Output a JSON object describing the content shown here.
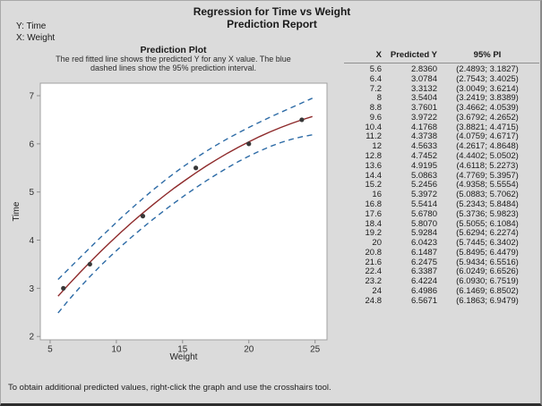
{
  "header": {
    "title": "Regression for Time vs Weight",
    "subtitle": "Prediction Report"
  },
  "variables": {
    "y_line": "Y: Time",
    "x_line": "X: Weight"
  },
  "plot_panel": {
    "heading": "Prediction Plot",
    "description_line1": "The red fitted line shows the predicted Y for any X value. The blue",
    "description_line2": "dashed lines show the 95% prediction interval."
  },
  "chart_data": {
    "type": "line",
    "title": "Prediction Plot",
    "xlabel": "Weight",
    "ylabel": "Time",
    "x_ticks": [
      5,
      10,
      15,
      20,
      25
    ],
    "y_ticks": [
      2,
      3,
      4,
      5,
      6,
      7
    ],
    "x_range": [
      4.26,
      25.9
    ],
    "y_range": [
      1.93,
      7.26
    ],
    "grid": false,
    "legend": false,
    "colors": {
      "fitted": "#8e2a2b",
      "interval": "#2d6ba6",
      "points": "#383838",
      "axis": "#8f8f8f",
      "plot_bg": "#ffffff",
      "window_bg": "#dbdbdb"
    },
    "series": [
      {
        "name": "fitted-line",
        "kind": "line",
        "color": "#8e2a2b",
        "x": [
          5.6,
          6.4,
          7.2,
          8,
          8.8,
          9.6,
          10.4,
          11.2,
          12,
          12.8,
          13.6,
          14.4,
          15.2,
          16,
          16.8,
          17.6,
          18.4,
          19.2,
          20,
          20.8,
          21.6,
          22.4,
          23.2,
          24,
          24.8
        ],
        "y": [
          2.836,
          3.0784,
          3.3132,
          3.5404,
          3.7601,
          3.9722,
          4.1768,
          4.3738,
          4.5633,
          4.7452,
          4.9195,
          5.0863,
          5.2456,
          5.3972,
          5.5414,
          5.678,
          5.807,
          5.9284,
          6.0423,
          6.1487,
          6.2475,
          6.3387,
          6.4224,
          6.4986,
          6.5671
        ]
      },
      {
        "name": "pi-lower",
        "kind": "dashed",
        "color": "#2d6ba6",
        "x": [
          5.6,
          6.4,
          7.2,
          8,
          8.8,
          9.6,
          10.4,
          11.2,
          12,
          12.8,
          13.6,
          14.4,
          15.2,
          16,
          16.8,
          17.6,
          18.4,
          19.2,
          20,
          20.8,
          21.6,
          22.4,
          23.2,
          24,
          24.8
        ],
        "y": [
          2.4893,
          2.7543,
          3.0049,
          3.2419,
          3.4662,
          3.6792,
          3.8821,
          4.0759,
          4.2617,
          4.4402,
          4.6118,
          4.7769,
          4.9358,
          5.0883,
          5.2343,
          5.3736,
          5.5055,
          5.6294,
          5.7445,
          5.8495,
          5.9434,
          6.0249,
          6.093,
          6.1469,
          6.1863
        ]
      },
      {
        "name": "pi-upper",
        "kind": "dashed",
        "color": "#2d6ba6",
        "x": [
          5.6,
          6.4,
          7.2,
          8,
          8.8,
          9.6,
          10.4,
          11.2,
          12,
          12.8,
          13.6,
          14.4,
          15.2,
          16,
          16.8,
          17.6,
          18.4,
          19.2,
          20,
          20.8,
          21.6,
          22.4,
          23.2,
          24,
          24.8
        ],
        "y": [
          3.1827,
          3.4025,
          3.6214,
          3.8389,
          4.0539,
          4.2652,
          4.4715,
          4.6717,
          4.8648,
          5.0502,
          5.2273,
          5.3957,
          5.5554,
          5.7062,
          5.8484,
          5.9823,
          6.1084,
          6.2274,
          6.3402,
          6.4479,
          6.5516,
          6.6526,
          6.7519,
          6.8502,
          6.9479
        ]
      },
      {
        "name": "observations",
        "kind": "scatter",
        "color": "#383838",
        "x": [
          6,
          8,
          12,
          16,
          20,
          24
        ],
        "y": [
          3,
          3.5,
          4.5,
          5.5,
          6,
          6.5
        ]
      }
    ]
  },
  "table": {
    "headers": [
      "X",
      "Predicted Y",
      "95% PI"
    ],
    "rows": [
      [
        "5.6",
        "2.8360",
        "(2.4893; 3.1827)"
      ],
      [
        "6.4",
        "3.0784",
        "(2.7543; 3.4025)"
      ],
      [
        "7.2",
        "3.3132",
        "(3.0049; 3.6214)"
      ],
      [
        "8",
        "3.5404",
        "(3.2419; 3.8389)"
      ],
      [
        "8.8",
        "3.7601",
        "(3.4662; 4.0539)"
      ],
      [
        "9.6",
        "3.9722",
        "(3.6792; 4.2652)"
      ],
      [
        "10.4",
        "4.1768",
        "(3.8821; 4.4715)"
      ],
      [
        "11.2",
        "4.3738",
        "(4.0759; 4.6717)"
      ],
      [
        "12",
        "4.5633",
        "(4.2617; 4.8648)"
      ],
      [
        "12.8",
        "4.7452",
        "(4.4402; 5.0502)"
      ],
      [
        "13.6",
        "4.9195",
        "(4.6118; 5.2273)"
      ],
      [
        "14.4",
        "5.0863",
        "(4.7769; 5.3957)"
      ],
      [
        "15.2",
        "5.2456",
        "(4.9358; 5.5554)"
      ],
      [
        "16",
        "5.3972",
        "(5.0883; 5.7062)"
      ],
      [
        "16.8",
        "5.5414",
        "(5.2343; 5.8484)"
      ],
      [
        "17.6",
        "5.6780",
        "(5.3736; 5.9823)"
      ],
      [
        "18.4",
        "5.8070",
        "(5.5055; 6.1084)"
      ],
      [
        "19.2",
        "5.9284",
        "(5.6294; 6.2274)"
      ],
      [
        "20",
        "6.0423",
        "(5.7445; 6.3402)"
      ],
      [
        "20.8",
        "6.1487",
        "(5.8495; 6.4479)"
      ],
      [
        "21.6",
        "6.2475",
        "(5.9434; 6.5516)"
      ],
      [
        "22.4",
        "6.3387",
        "(6.0249; 6.6526)"
      ],
      [
        "23.2",
        "6.4224",
        "(6.0930; 6.7519)"
      ],
      [
        "24",
        "6.4986",
        "(6.1469; 6.8502)"
      ],
      [
        "24.8",
        "6.5671",
        "(6.1863; 6.9479)"
      ]
    ]
  },
  "footer": {
    "note": "To obtain additional predicted values, right-click the graph and use the crosshairs tool."
  }
}
